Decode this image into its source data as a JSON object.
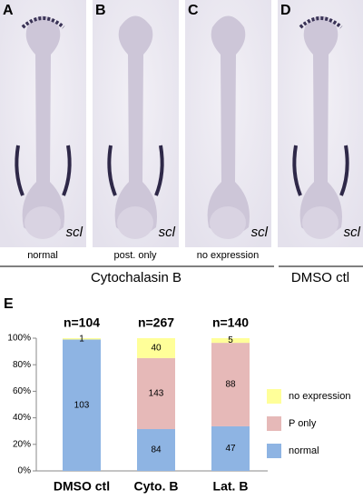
{
  "panels": [
    {
      "letter": "A",
      "gene": "scl",
      "caption": "normal"
    },
    {
      "letter": "B",
      "gene": "scl",
      "caption": "post. only"
    },
    {
      "letter": "C",
      "gene": "scl",
      "caption": "no expression"
    },
    {
      "letter": "D",
      "gene": "scl"
    }
  ],
  "groups": [
    "Cytochalasin B",
    "DMSO ctl"
  ],
  "chart_data": {
    "type": "stacked_bar",
    "label": "E",
    "categories": [
      "DMSO ctl",
      "Cyto. B",
      "Lat. B"
    ],
    "annotations": [
      "n=104",
      "n=267",
      "n=140"
    ],
    "series": [
      {
        "name": "normal",
        "color": "#8eb4e3",
        "values": [
          99.0,
          31.5,
          33.6
        ],
        "value_labels": [
          "103",
          "84",
          "47"
        ]
      },
      {
        "name": "P only",
        "color": "#e6b9b8",
        "values": [
          0,
          53.5,
          62.9
        ],
        "value_labels": [
          null,
          "143",
          "88"
        ]
      },
      {
        "name": "no expression",
        "color": "#ffff99",
        "values": [
          1.0,
          15.0,
          3.5
        ],
        "value_labels": [
          "1",
          "40",
          "5"
        ]
      }
    ],
    "ylim": [
      0,
      100
    ],
    "yticks": [
      {
        "value": 0,
        "label": "0%"
      },
      {
        "value": 20,
        "label": "20%"
      },
      {
        "value": 40,
        "label": "40%"
      },
      {
        "value": 60,
        "label": "60%"
      },
      {
        "value": 80,
        "label": "80%"
      },
      {
        "value": 100,
        "label": "100%"
      }
    ]
  }
}
